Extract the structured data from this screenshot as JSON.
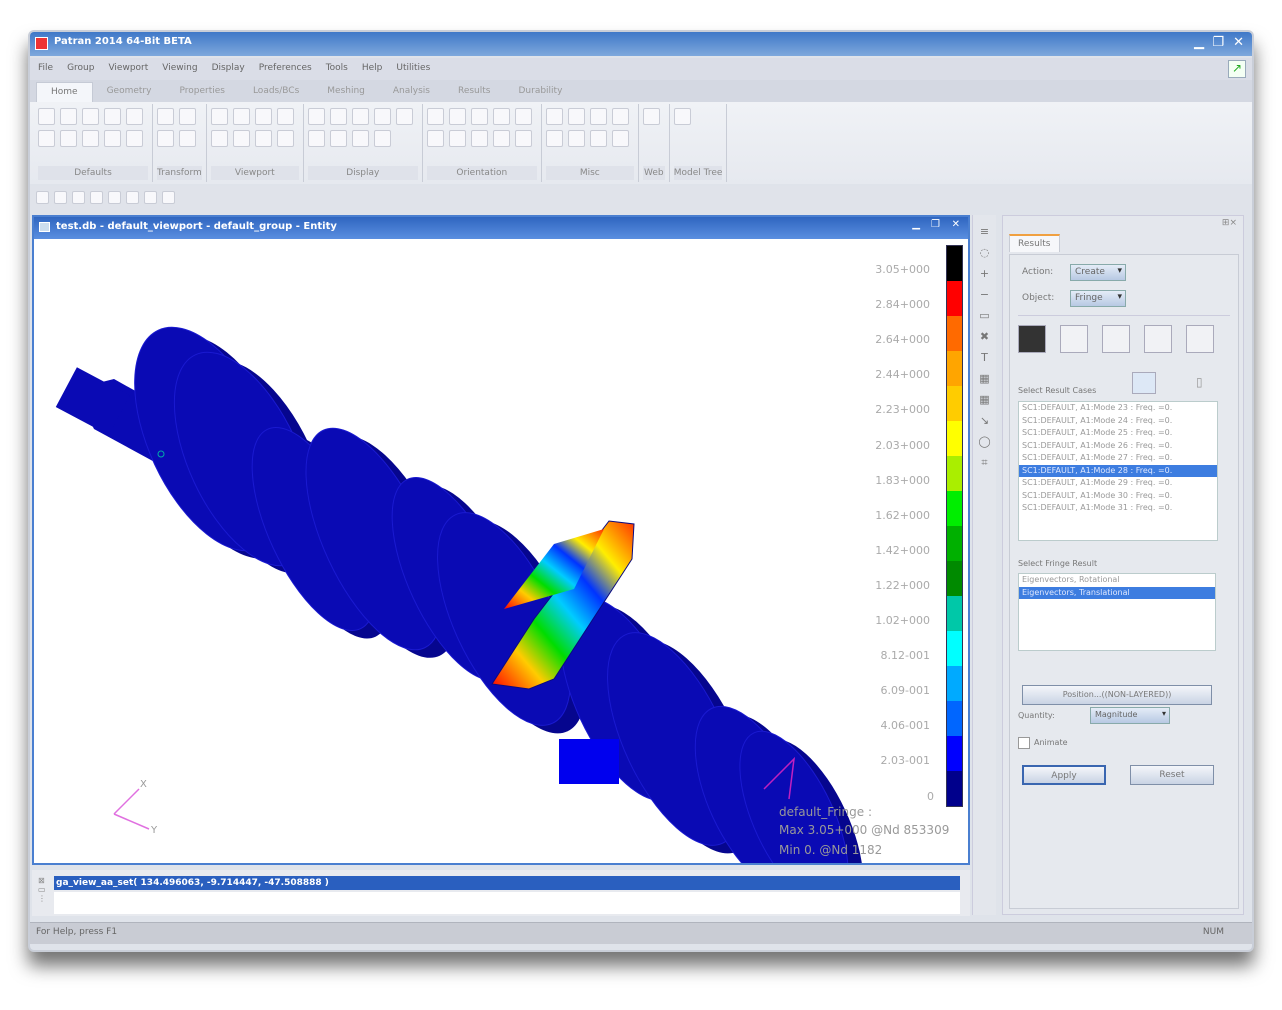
{
  "app": {
    "title": "Patran 2014 64-Bit BETA"
  },
  "menu": [
    "File",
    "Group",
    "Viewport",
    "Viewing",
    "Display",
    "Preferences",
    "Tools",
    "Help",
    "Utilities"
  ],
  "tabs": [
    "Home",
    "Geometry",
    "Properties",
    "Loads/BCs",
    "Meshing",
    "Analysis",
    "Results",
    "Durability"
  ],
  "active_tab": "Home",
  "ribbon_groups": [
    {
      "label": "Defaults",
      "icons": 10
    },
    {
      "label": "Transform",
      "icons": 4
    },
    {
      "label": "Viewport",
      "icons": 8
    },
    {
      "label": "Display",
      "icons": 9
    },
    {
      "label": "Orientation",
      "icons": 10
    },
    {
      "label": "Misc",
      "icons": 8
    },
    {
      "label": "Web",
      "icons": 1
    },
    {
      "label": "Model Tree",
      "icons": 1
    }
  ],
  "viewport": {
    "title": "test.db - default_viewport - default_group - Entity",
    "legend": {
      "labels": [
        "3.05+000",
        "2.84+000",
        "2.64+000",
        "2.44+000",
        "2.23+000",
        "2.03+000",
        "1.83+000",
        "1.62+000",
        "1.42+000",
        "1.22+000",
        "1.02+000",
        "8.12-001",
        "6.09-001",
        "4.06-001",
        "2.03-001",
        "0"
      ],
      "colors": [
        "#000000",
        "#ff0000",
        "#ff6a00",
        "#ffa500",
        "#ffcc00",
        "#ffff00",
        "#aaee00",
        "#00ee00",
        "#00b000",
        "#008a00",
        "#00c8a8",
        "#00ffff",
        "#00aaff",
        "#0066ff",
        "#0000ff",
        "#00008c"
      ]
    },
    "fringe_info": [
      "default_Fringe :",
      "Max 3.05+000 @Nd 853309",
      "Min 0. @Nd 1182"
    ],
    "axes": {
      "x": "X",
      "y": "Y"
    },
    "model_color": "#0a0ab4"
  },
  "command": {
    "text": "ga_view_aa_set( 134.496063, -9.714447, -47.508888 )"
  },
  "status": {
    "help": "For Help, press F1",
    "num": "NUM"
  },
  "panel": {
    "tab": "Results",
    "action_label": "Action:",
    "action": "Create",
    "object_label": "Object:",
    "object": "Fringe",
    "result_cases_label": "Select Result Cases",
    "result_cases": [
      "SC1:DEFAULT, A1:Mode 23 : Freq. =0.",
      "SC1:DEFAULT, A1:Mode 24 : Freq. =0.",
      "SC1:DEFAULT, A1:Mode 25 : Freq. =0.",
      "SC1:DEFAULT, A1:Mode 26 : Freq. =0.",
      "SC1:DEFAULT, A1:Mode 27 : Freq. =0.",
      "SC1:DEFAULT, A1:Mode 28 : Freq. =0.",
      "SC1:DEFAULT, A1:Mode 29 : Freq. =0.",
      "SC1:DEFAULT, A1:Mode 30 : Freq. =0.",
      "SC1:DEFAULT, A1:Mode 31 : Freq. =0."
    ],
    "result_case_selected": 5,
    "fringe_label": "Select Fringe Result",
    "fringe_results": [
      "Eigenvectors, Rotational",
      "Eigenvectors, Translational"
    ],
    "fringe_selected": 1,
    "position": "Position...((NON-LAYERED))",
    "quantity_label": "Quantity:",
    "quantity": "Magnitude",
    "animate": "Animate",
    "animate_checked": false,
    "apply": "Apply",
    "reset": "Reset"
  }
}
